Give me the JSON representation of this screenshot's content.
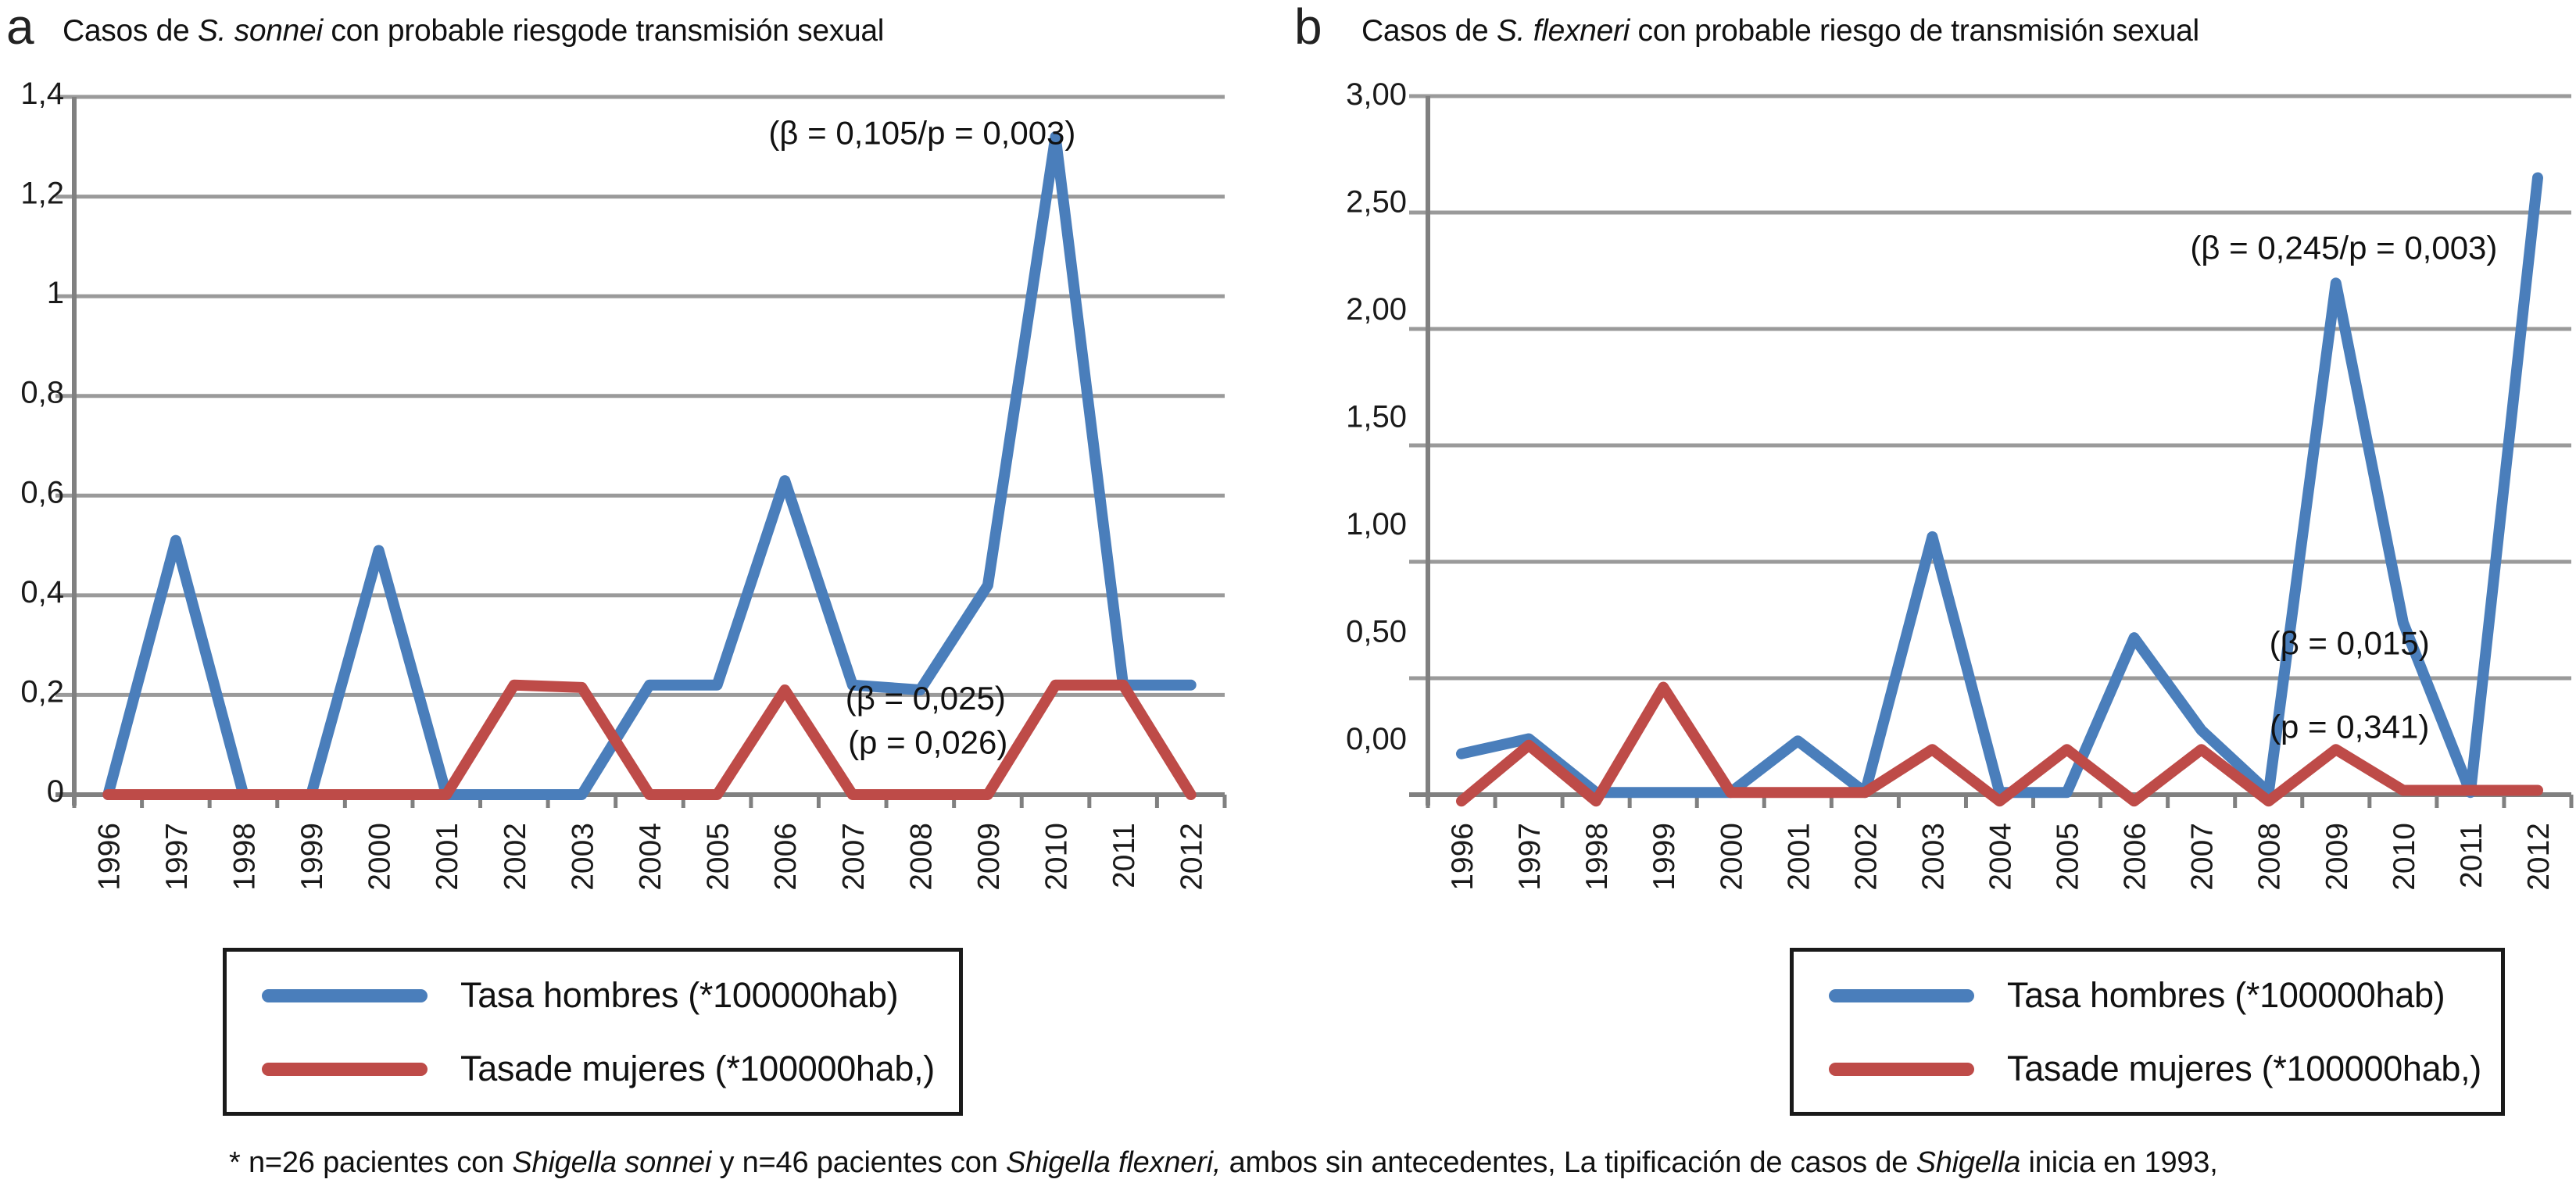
{
  "figure": {
    "panels": [
      {
        "panel_letter": "a",
        "title": {
          "pre": "Casos de ",
          "italic": "S. sonnei",
          "post": " con probable riesgode transmisión sexual"
        },
        "chart_data": {
          "type": "line",
          "title": "Casos de S. sonnei con probable riesgode transmisión sexual",
          "x_categories": [
            "1996",
            "1997",
            "1998",
            "1999",
            "2000",
            "2001",
            "2002",
            "2003",
            "2004",
            "2005",
            "2006",
            "2007",
            "2008",
            "2009",
            "2010",
            "2011",
            "2012"
          ],
          "xlabel": "",
          "ylabel": "",
          "ylim": [
            0,
            1.4
          ],
          "grid": "horizontal",
          "legend_position": "bottom",
          "yticks": [
            {
              "label": "0",
              "value": 0
            },
            {
              "label": "0,2",
              "value": 0.2
            },
            {
              "label": "0,4",
              "value": 0.4
            },
            {
              "label": "0,6",
              "value": 0.6
            },
            {
              "label": "0,8",
              "value": 0.8
            },
            {
              "label": "1",
              "value": 1.0
            },
            {
              "label": "1,2",
              "value": 1.2
            },
            {
              "label": "1,4",
              "value": 1.4
            }
          ],
          "series": [
            {
              "name": "Tasa hombres (*100000hab)",
              "color": "#4A7EBB",
              "values": [
                0,
                0.51,
                0,
                0,
                0.49,
                0,
                0,
                0,
                0.22,
                0.22,
                0.63,
                0.22,
                0.21,
                0.42,
                1.32,
                0.22,
                0.22
              ]
            },
            {
              "name": "Tasade mujeres (*100000hab,)",
              "color": "#BE4B48",
              "values": [
                0,
                0,
                0,
                0,
                0,
                0,
                0.22,
                0.215,
                0,
                0,
                0.21,
                0,
                0,
                0,
                0.22,
                0.22,
                0
              ]
            }
          ],
          "annotations": [
            {
              "text": "(β = 0,105/p = 0,003)"
            },
            {
              "text": "(β = 0,025)"
            },
            {
              "text": "(p = 0,026)"
            }
          ]
        }
      },
      {
        "panel_letter": "b",
        "title": {
          "pre": "Casos de ",
          "italic": "S. flexneri",
          "post": " con probable riesgo de transmisión sexual"
        },
        "chart_data": {
          "type": "line",
          "title": "Casos de S. flexneri con probable riesgo de transmisión sexual",
          "x_categories": [
            "1996",
            "1997",
            "1998",
            "1999",
            "2000",
            "2001",
            "2002",
            "2003",
            "2004",
            "2005",
            "2006",
            "2007",
            "2008",
            "2009",
            "2010",
            "2011",
            "2012"
          ],
          "xlabel": "",
          "ylabel": "",
          "ylim": [
            -0.25,
            3.0
          ],
          "grid": "horizontal",
          "legend_position": "bottom",
          "yticks": [
            {
              "label": "0,00",
              "value": 0
            },
            {
              "label": "0,50",
              "value": 0.5
            },
            {
              "label": "1,00",
              "value": 1.0
            },
            {
              "label": "1,50",
              "value": 1.5
            },
            {
              "label": "2,00",
              "value": 2.0
            },
            {
              "label": "2,50",
              "value": 2.5
            },
            {
              "label": "3,00",
              "value": 3.0
            }
          ],
          "series": [
            {
              "name": "Tasa hombres (*100000hab)",
              "color": "#4A7EBB",
              "values": [
                -0.06,
                0.01,
                -0.24,
                -0.24,
                -0.24,
                0,
                -0.24,
                0.95,
                -0.24,
                -0.24,
                0.48,
                0.05,
                -0.24,
                2.13,
                0.55,
                -0.24,
                2.62
              ]
            },
            {
              "name": "Tasade mujeres (*100000hab,)",
              "color": "#BE4B48",
              "values": [
                -0.28,
                -0.02,
                -0.28,
                0.25,
                -0.24,
                -0.24,
                -0.24,
                -0.04,
                -0.28,
                -0.04,
                -0.28,
                -0.04,
                -0.28,
                -0.04,
                -0.23,
                -0.23,
                -0.23
              ]
            }
          ],
          "annotations": [
            {
              "text": "(β = 0,245/p = 0,003)"
            },
            {
              "text": "(β = 0,015)"
            },
            {
              "text": "(p = 0,341)"
            }
          ]
        }
      }
    ],
    "footnote": {
      "segments": [
        {
          "text": "* n=26 pacientes con ",
          "italic": false
        },
        {
          "text": "Shigella sonnei",
          "italic": true
        },
        {
          "text": "  y n=46 pacientes con ",
          "italic": false
        },
        {
          "text": "Shigella  flexneri,",
          "italic": true
        },
        {
          "text": " ambos sin antecedentes, La tipificación de casos de ",
          "italic": false
        },
        {
          "text": "Shigella",
          "italic": true
        },
        {
          "text": " inicia en 1993,",
          "italic": false
        }
      ]
    },
    "colors": {
      "series_men": "#4A7EBB",
      "series_women": "#BE4B48",
      "gridline": "#9A9A9A",
      "axis": "#808080",
      "text": "#1a1a1a"
    }
  }
}
